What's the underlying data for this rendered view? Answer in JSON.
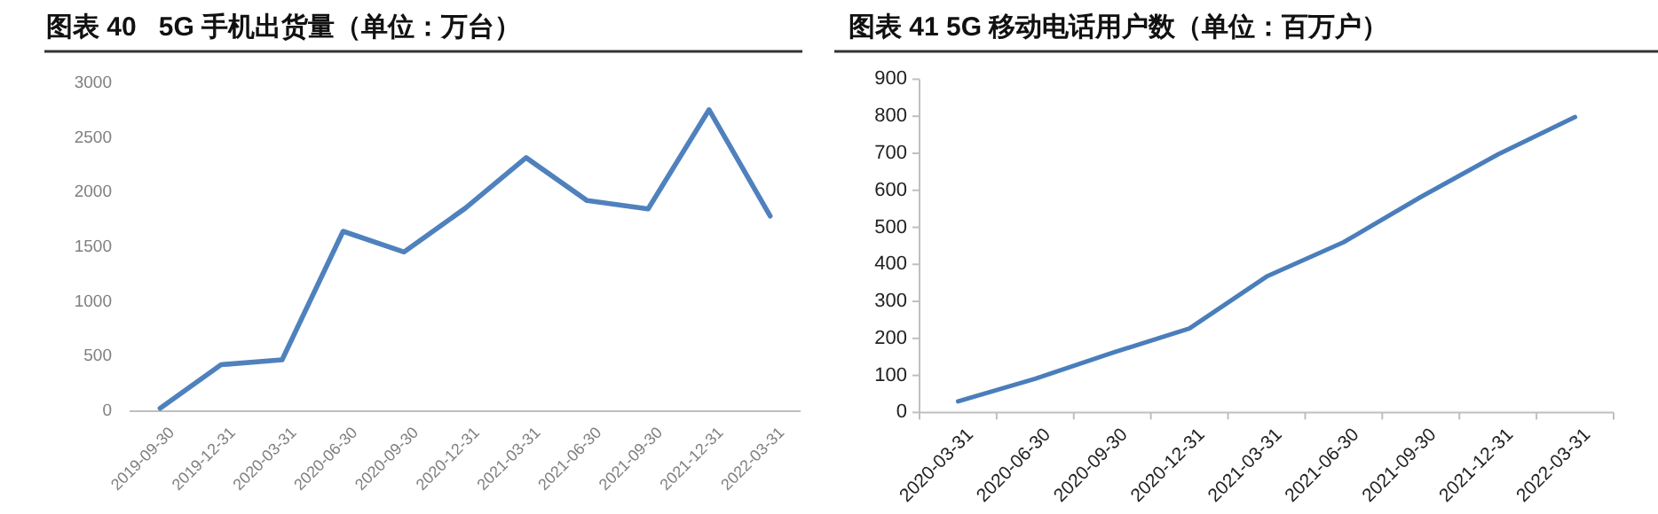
{
  "chart_data": [
    {
      "type": "line",
      "title": "图表 40   5G 手机出货量（单位：万台）",
      "categories": [
        "2019-09-30",
        "2019-12-31",
        "2020-03-31",
        "2020-06-30",
        "2020-09-30",
        "2020-12-31",
        "2021-03-31",
        "2021-06-30",
        "2021-09-30",
        "2021-12-31",
        "2022-03-31"
      ],
      "series": [
        {
          "color": "#4f81bd",
          "values": [
            27,
            426,
            470,
            1646,
            1457,
            1856,
            2320,
            1927,
            1851,
            2758,
            1786
          ]
        }
      ],
      "ylim": [
        0,
        3000
      ],
      "yticks": [
        0,
        500,
        1000,
        1500,
        2000,
        2500,
        3000
      ],
      "grid": false
    },
    {
      "type": "line",
      "title": "图表 41 5G 移动电话用户数（单位：百万户）",
      "categories": [
        "2020-03-31",
        "2020-06-30",
        "2020-09-30",
        "2020-12-31",
        "2021-03-31",
        "2021-06-30",
        "2021-09-30",
        "2021-12-31",
        "2022-03-31"
      ],
      "series": [
        {
          "color": "#4a7ebb",
          "values": [
            30,
            91,
            161,
            227,
            367,
            460,
            582,
            697,
            798
          ]
        }
      ],
      "ylim": [
        0,
        900
      ],
      "yticks": [
        0,
        100,
        200,
        300,
        400,
        500,
        600,
        700,
        800,
        900
      ],
      "grid": false
    }
  ]
}
